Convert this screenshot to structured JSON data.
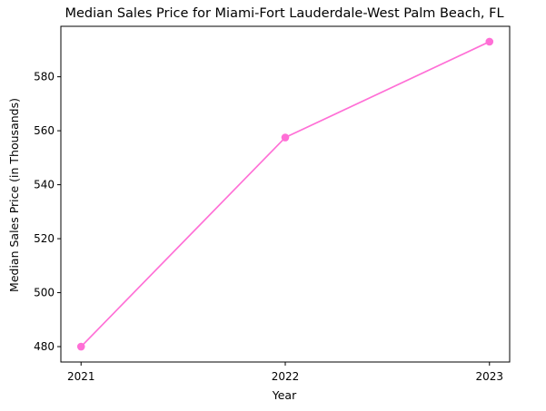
{
  "chart_data": {
    "type": "line",
    "title": "Median Sales Price for Miami-Fort Lauderdale-West Palm Beach, FL",
    "xlabel": "Year",
    "ylabel": "Median Sales Price (in Thousands)",
    "x": [
      "2021",
      "2022",
      "2023"
    ],
    "series": [
      {
        "values": [
          480,
          557.5,
          593
        ],
        "color": "#ff6fd6",
        "marker": "circle"
      }
    ],
    "xticks": [
      "2021",
      "2022",
      "2023"
    ],
    "yticks": [
      480,
      500,
      520,
      540,
      560,
      580
    ],
    "ylim": [
      474.3,
      598.7
    ],
    "grid": false,
    "legend": "none"
  }
}
